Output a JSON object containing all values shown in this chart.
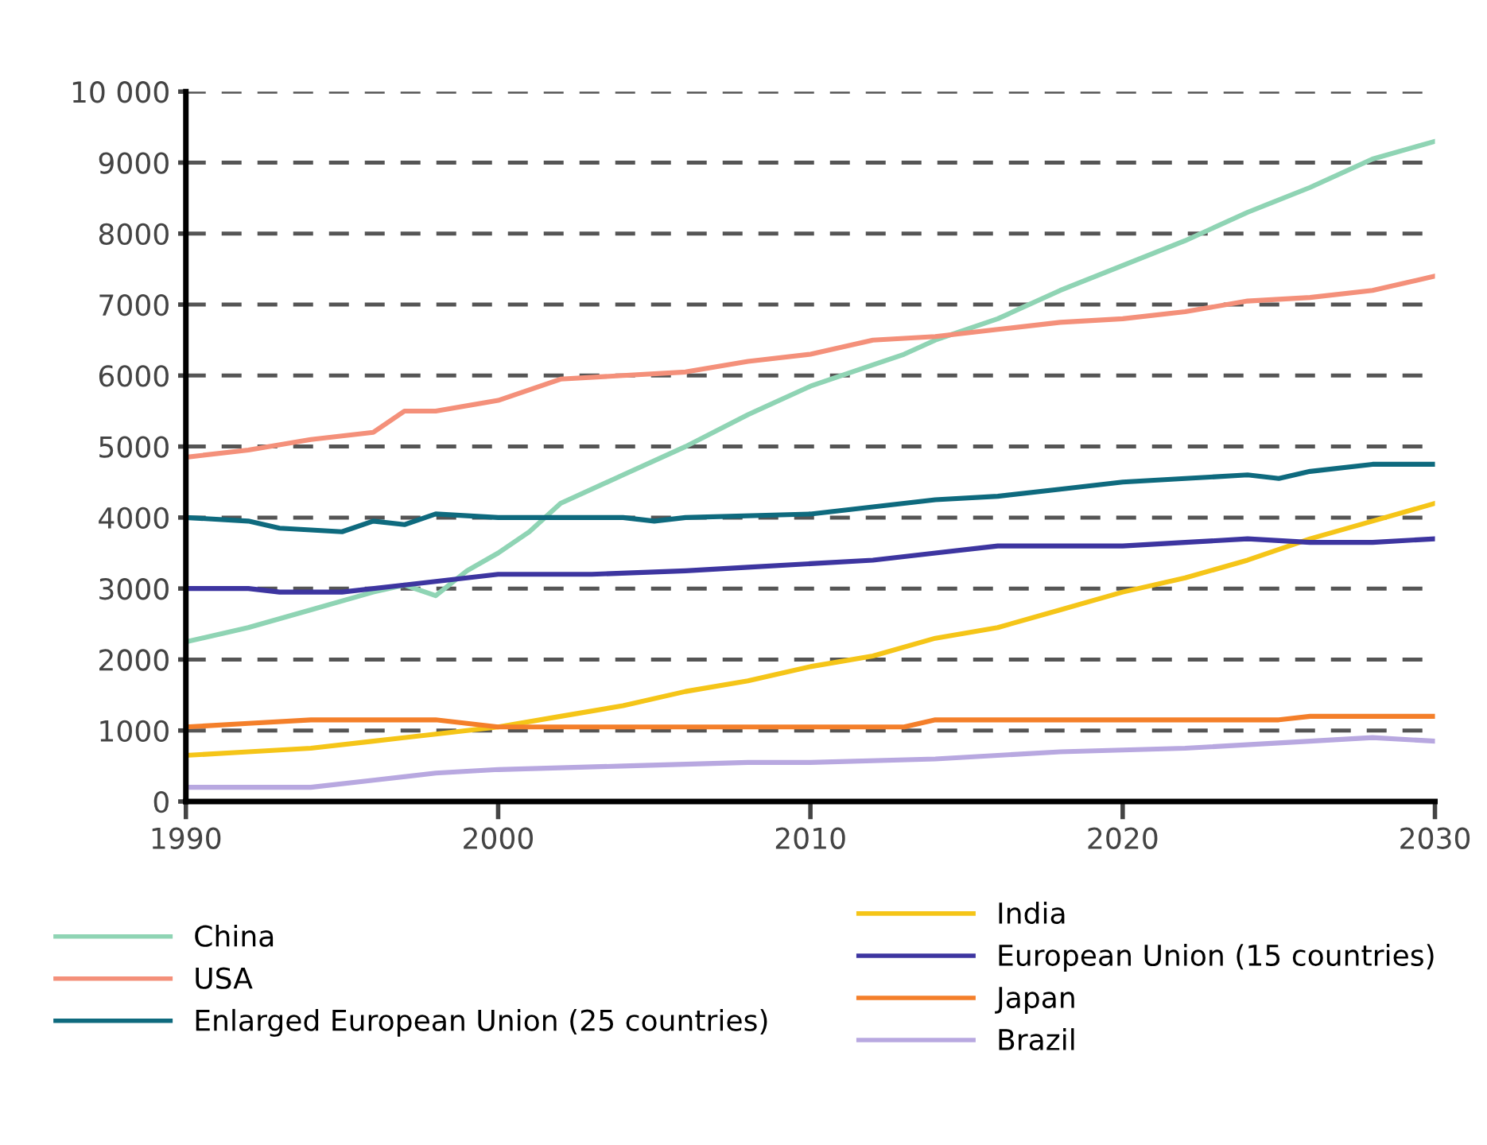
{
  "chart_data": {
    "type": "line",
    "xlim": [
      1990,
      2030
    ],
    "ylim": [
      0,
      10000
    ],
    "xticks": [
      1990,
      2000,
      2010,
      2020,
      2030
    ],
    "yticks": [
      0,
      1000,
      2000,
      3000,
      4000,
      5000,
      6000,
      7000,
      8000,
      9000,
      {
        "value": 10000,
        "label": "10 000"
      }
    ],
    "grid": "y",
    "legend": "bottom",
    "marker": "none",
    "line_style": "solid",
    "series": [
      {
        "name": "China",
        "color": "#8fd4b4",
        "x": [
          1990,
          1992,
          1994,
          1996,
          1997,
          1998,
          1999,
          2000,
          2001,
          2002,
          2004,
          2006,
          2008,
          2010,
          2012,
          2013,
          2014,
          2016,
          2018,
          2020,
          2022,
          2024,
          2026,
          2028,
          2030
        ],
        "values": [
          2250,
          2450,
          2700,
          2950,
          3050,
          2900,
          3250,
          3500,
          3800,
          4200,
          4600,
          5000,
          5450,
          5850,
          6150,
          6300,
          6500,
          6800,
          7200,
          7550,
          7900,
          8300,
          8650,
          9050,
          9300
        ]
      },
      {
        "name": "USA",
        "color": "#f4907a",
        "x": [
          1990,
          1992,
          1994,
          1996,
          1997,
          1998,
          2000,
          2002,
          2004,
          2006,
          2008,
          2010,
          2012,
          2014,
          2016,
          2018,
          2020,
          2022,
          2024,
          2026,
          2028,
          2030
        ],
        "values": [
          4850,
          4950,
          5100,
          5200,
          5500,
          5500,
          5650,
          5950,
          6000,
          6050,
          6200,
          6300,
          6500,
          6550,
          6650,
          6750,
          6800,
          6900,
          7050,
          7100,
          7200,
          7400
        ]
      },
      {
        "name": "Enlarged European Union (25 countries)",
        "color": "#0e6a7e",
        "x": [
          1990,
          1992,
          1993,
          1995,
          1996,
          1997,
          1998,
          2000,
          2004,
          2005,
          2006,
          2010,
          2012,
          2014,
          2016,
          2018,
          2020,
          2022,
          2024,
          2025,
          2026,
          2028,
          2030
        ],
        "values": [
          4000,
          3950,
          3850,
          3800,
          3950,
          3900,
          4050,
          4000,
          4000,
          3950,
          4000,
          4050,
          4150,
          4250,
          4300,
          4400,
          4500,
          4550,
          4600,
          4550,
          4650,
          4750,
          4750
        ]
      },
      {
        "name": "India",
        "color": "#f5c518",
        "x": [
          1990,
          1992,
          1994,
          1996,
          1998,
          2000,
          2002,
          2004,
          2006,
          2008,
          2010,
          2012,
          2014,
          2016,
          2018,
          2020,
          2022,
          2024,
          2026,
          2028,
          2030
        ],
        "values": [
          650,
          700,
          750,
          850,
          950,
          1050,
          1200,
          1350,
          1550,
          1700,
          1900,
          2050,
          2300,
          2450,
          2700,
          2950,
          3150,
          3400,
          3700,
          3950,
          4200
        ]
      },
      {
        "name": "European Union (15 countries)",
        "color": "#3d35a0",
        "x": [
          1990,
          1992,
          1993,
          1995,
          1997,
          2000,
          2003,
          2006,
          2008,
          2010,
          2012,
          2014,
          2016,
          2018,
          2020,
          2022,
          2024,
          2026,
          2028,
          2030
        ],
        "values": [
          3000,
          3000,
          2950,
          2950,
          3050,
          3200,
          3200,
          3250,
          3300,
          3350,
          3400,
          3500,
          3600,
          3600,
          3600,
          3650,
          3700,
          3650,
          3650,
          3700
        ]
      },
      {
        "name": "Japan",
        "color": "#f47f2a",
        "x": [
          1990,
          1992,
          1994,
          1996,
          1998,
          1999,
          2000,
          2013,
          2014,
          2025,
          2026,
          2030
        ],
        "values": [
          1050,
          1100,
          1150,
          1150,
          1150,
          1100,
          1050,
          1050,
          1150,
          1150,
          1200,
          1200
        ]
      },
      {
        "name": "Brazil",
        "color": "#b8a8e0",
        "x": [
          1990,
          1994,
          1996,
          1998,
          2000,
          2004,
          2008,
          2010,
          2014,
          2018,
          2022,
          2026,
          2028,
          2030
        ],
        "values": [
          200,
          200,
          300,
          400,
          450,
          500,
          550,
          550,
          600,
          700,
          750,
          850,
          900,
          850
        ]
      }
    ]
  }
}
